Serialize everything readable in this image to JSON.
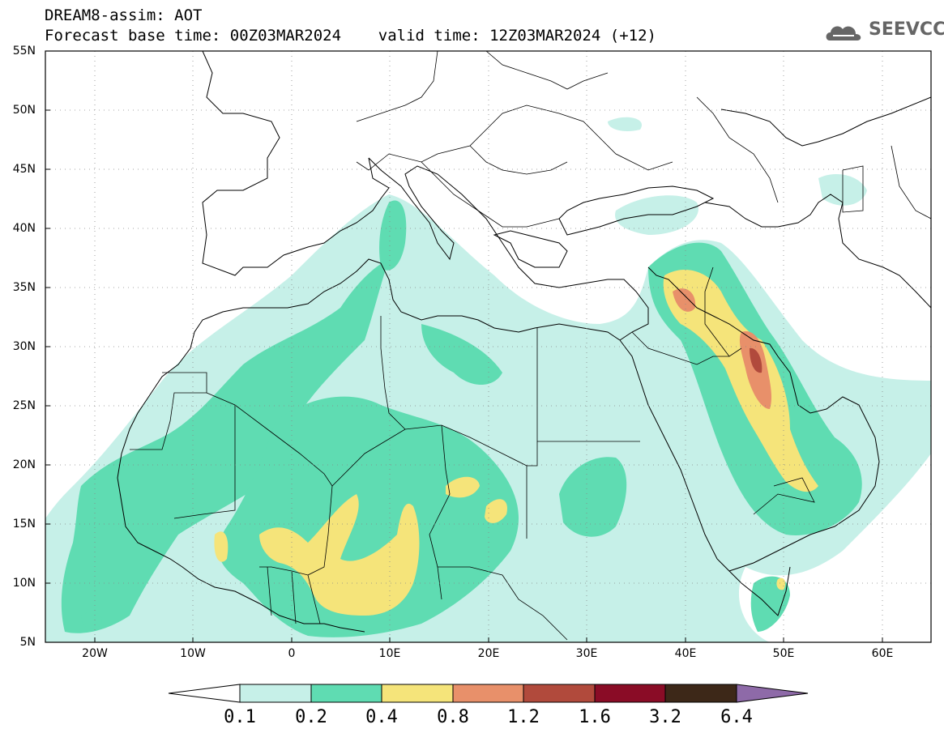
{
  "title_line1": "DREAM8-assim: AOT",
  "title_line2": "Forecast base time: 00Z03MAR2024    valid time: 12Z03MAR2024 (+12)",
  "logo": {
    "icon": "cloud-icon",
    "text": "SEEVCCC",
    "color": "#666666"
  },
  "map": {
    "lon_range": [
      -25,
      65
    ],
    "lat_range": [
      5,
      55
    ],
    "lat_labels": [
      "55N",
      "50N",
      "45N",
      "40N",
      "35N",
      "30N",
      "25N",
      "20N",
      "15N",
      "10N",
      "5N"
    ],
    "lon_labels": [
      "20W",
      "10W",
      "0",
      "10E",
      "20E",
      "30E",
      "40E",
      "50E",
      "60E"
    ],
    "grid": "dotted"
  },
  "colorbar": {
    "labels": [
      "0.1",
      "0.2",
      "0.4",
      "0.8",
      "1.2",
      "1.6",
      "3.2",
      "6.4"
    ],
    "colors": [
      "#c6f0e8",
      "#5fdcb2",
      "#f5e47a",
      "#e8906a",
      "#b14a3c",
      "#8a0c26",
      "#3d2818",
      "#8e6aa8"
    ]
  }
}
